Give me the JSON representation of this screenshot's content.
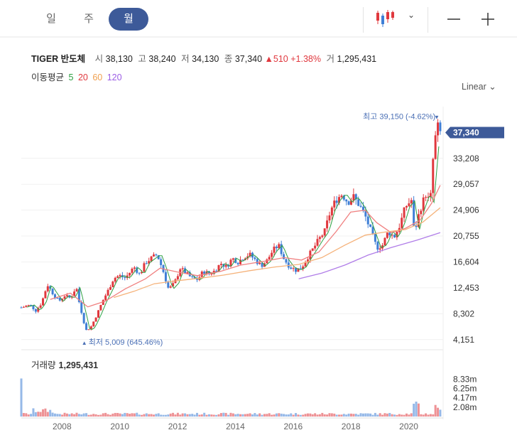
{
  "tabs": [
    {
      "label": "일",
      "active": false
    },
    {
      "label": "주",
      "active": false
    },
    {
      "label": "월",
      "active": true
    }
  ],
  "toolbar": {
    "chart_type_icon": "candlestick-icon",
    "dropdown_icon": "chevron-down-icon",
    "zoom_out_icon": "minus-icon",
    "zoom_in_icon": "plus-icon"
  },
  "ticker": {
    "name": "TIGER 반도체",
    "open_label": "시",
    "open": "38,130",
    "high_label": "고",
    "high": "38,240",
    "low_label": "저",
    "low": "34,130",
    "close_label": "종",
    "close": "37,340",
    "change": "510",
    "change_pct": "+1.38%",
    "volume_label": "거",
    "volume": "1,295,431"
  },
  "moving_average": {
    "label": "이동평균",
    "periods": [
      {
        "label": "5",
        "color": "#2ea043"
      },
      {
        "label": "20",
        "color": "#e0383e"
      },
      {
        "label": "60",
        "color": "#f0a050"
      },
      {
        "label": "120",
        "color": "#9b5de5"
      }
    ]
  },
  "scale_toggle": "Linear",
  "volume_panel": {
    "label": "거래량",
    "value": "1,295,431"
  },
  "colors": {
    "up": "#e0383e",
    "down": "#3f7fd6",
    "accent": "#3d5a99",
    "annotation": "#4a6fb5"
  },
  "chart_data": {
    "type": "candlestick",
    "x_tick_labels": [
      "2008",
      "2010",
      "2012",
      "2014",
      "2016",
      "2018",
      "2020"
    ],
    "y_tick_labels": [
      "33,208",
      "29,057",
      "24,906",
      "20,755",
      "16,604",
      "12,453",
      "8,302",
      "4,151"
    ],
    "y_ticks": [
      33208,
      29057,
      24906,
      20755,
      16604,
      12453,
      8302,
      4151
    ],
    "ylim": [
      3100,
      41500
    ],
    "x_start": 2006.6,
    "x_end": 2021.2,
    "last_price": {
      "value": 37340,
      "label": "37,340"
    },
    "max_annotation": {
      "text": "최고 39,150 (-4.62%)",
      "value": 39150,
      "x": 2020.98
    },
    "min_annotation": {
      "text": "최저 5,009 (645.46%)",
      "value": 5009,
      "x": 2008.83
    },
    "close_series": [
      [
        2006.6,
        9300
      ],
      [
        2006.9,
        9700
      ],
      [
        2007.1,
        8800
      ],
      [
        2007.3,
        10000
      ],
      [
        2007.5,
        13000
      ],
      [
        2007.7,
        11500
      ],
      [
        2007.9,
        10300
      ],
      [
        2008.1,
        11200
      ],
      [
        2008.3,
        10800
      ],
      [
        2008.5,
        12600
      ],
      [
        2008.6,
        10200
      ],
      [
        2008.75,
        7300
      ],
      [
        2008.83,
        5600
      ],
      [
        2009.0,
        6100
      ],
      [
        2009.2,
        8000
      ],
      [
        2009.4,
        10200
      ],
      [
        2009.6,
        12000
      ],
      [
        2009.8,
        14000
      ],
      [
        2010.0,
        14400
      ],
      [
        2010.2,
        14000
      ],
      [
        2010.5,
        15800
      ],
      [
        2010.7,
        14600
      ],
      [
        2010.9,
        16500
      ],
      [
        2011.1,
        17200
      ],
      [
        2011.3,
        17800
      ],
      [
        2011.5,
        15300
      ],
      [
        2011.7,
        12200
      ],
      [
        2011.9,
        13200
      ],
      [
        2012.1,
        15600
      ],
      [
        2012.3,
        14800
      ],
      [
        2012.5,
        14000
      ],
      [
        2012.7,
        13800
      ],
      [
        2012.9,
        15100
      ],
      [
        2013.1,
        14700
      ],
      [
        2013.3,
        15200
      ],
      [
        2013.5,
        16400
      ],
      [
        2013.7,
        15800
      ],
      [
        2013.9,
        17200
      ],
      [
        2014.1,
        16600
      ],
      [
        2014.3,
        17400
      ],
      [
        2014.5,
        17800
      ],
      [
        2014.7,
        16900
      ],
      [
        2014.9,
        16000
      ],
      [
        2015.1,
        16800
      ],
      [
        2015.3,
        18400
      ],
      [
        2015.5,
        19300
      ],
      [
        2015.7,
        17000
      ],
      [
        2015.9,
        15800
      ],
      [
        2016.1,
        15300
      ],
      [
        2016.3,
        15700
      ],
      [
        2016.5,
        17300
      ],
      [
        2016.7,
        18700
      ],
      [
        2016.9,
        20200
      ],
      [
        2017.1,
        21500
      ],
      [
        2017.3,
        24800
      ],
      [
        2017.5,
        26600
      ],
      [
        2017.7,
        27500
      ],
      [
        2017.9,
        26200
      ],
      [
        2018.1,
        27000
      ],
      [
        2018.3,
        25700
      ],
      [
        2018.5,
        24000
      ],
      [
        2018.7,
        21500
      ],
      [
        2018.9,
        18900
      ],
      [
        2019.1,
        19300
      ],
      [
        2019.3,
        21500
      ],
      [
        2019.5,
        20600
      ],
      [
        2019.7,
        22500
      ],
      [
        2019.9,
        25500
      ],
      [
        2020.1,
        26500
      ],
      [
        2020.2,
        21200
      ],
      [
        2020.4,
        25000
      ],
      [
        2020.6,
        27500
      ],
      [
        2020.75,
        26000
      ],
      [
        2020.85,
        33000
      ],
      [
        2020.98,
        38500
      ],
      [
        2021.1,
        37340
      ]
    ],
    "ma_series": [
      {
        "period": "20",
        "points": [
          [
            2007.6,
            10600
          ],
          [
            2008.3,
            11600
          ],
          [
            2008.9,
            9400
          ],
          [
            2009.5,
            10300
          ],
          [
            2010.2,
            12300
          ],
          [
            2010.9,
            13900
          ],
          [
            2011.4,
            15600
          ],
          [
            2012.0,
            15000
          ],
          [
            2012.7,
            14400
          ],
          [
            2013.5,
            15100
          ],
          [
            2014.2,
            16100
          ],
          [
            2015.0,
            16700
          ],
          [
            2015.7,
            17300
          ],
          [
            2016.3,
            16900
          ],
          [
            2016.9,
            18200
          ],
          [
            2017.5,
            21500
          ],
          [
            2018.0,
            24600
          ],
          [
            2018.5,
            24900
          ],
          [
            2018.9,
            22900
          ],
          [
            2019.4,
            21300
          ],
          [
            2019.9,
            22000
          ],
          [
            2020.4,
            23300
          ],
          [
            2020.8,
            26000
          ],
          [
            2021.1,
            28900
          ]
        ]
      },
      {
        "period": "60",
        "points": [
          [
            2009.8,
            10900
          ],
          [
            2010.5,
            11900
          ],
          [
            2011.2,
            13100
          ],
          [
            2012.0,
            13600
          ],
          [
            2012.8,
            14000
          ],
          [
            2013.6,
            14500
          ],
          [
            2014.5,
            15200
          ],
          [
            2015.4,
            15800
          ],
          [
            2016.2,
            16200
          ],
          [
            2017.0,
            17300
          ],
          [
            2017.8,
            19300
          ],
          [
            2018.5,
            20900
          ],
          [
            2019.2,
            21400
          ],
          [
            2019.9,
            21800
          ],
          [
            2020.5,
            23000
          ],
          [
            2021.1,
            25300
          ]
        ]
      },
      {
        "period": "120",
        "points": [
          [
            2016.2,
            13900
          ],
          [
            2017.0,
            14800
          ],
          [
            2017.8,
            16100
          ],
          [
            2018.6,
            17700
          ],
          [
            2019.4,
            18900
          ],
          [
            2020.3,
            20100
          ],
          [
            2021.1,
            21300
          ]
        ]
      }
    ],
    "volume": {
      "y_tick_labels": [
        "8.33m",
        "6.25m",
        "4.17m",
        "2.08m"
      ],
      "y_ticks": [
        8330000,
        6250000,
        4170000,
        2080000
      ],
      "ylim": [
        0,
        10000000
      ]
    }
  }
}
